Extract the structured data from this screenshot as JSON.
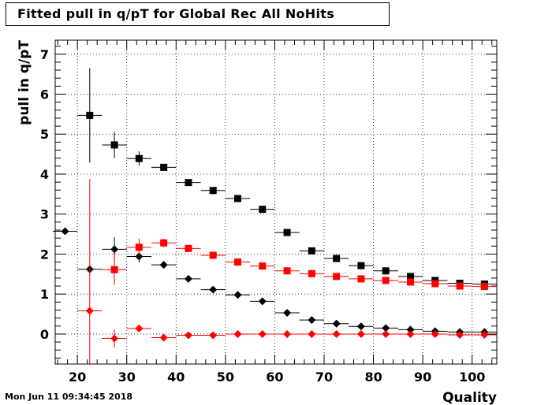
{
  "title": "Fitted pull in q/pT for Global Rec All NoHits",
  "timestamp": "Mon Jun 11 09:34:45 2018",
  "chart_data": {
    "type": "scatter",
    "title": "Fitted pull in q/pT for Global Rec All NoHits",
    "xlabel": "Quality",
    "ylabel": "pull in q/pT",
    "xlim": [
      15.5,
      105
    ],
    "ylim": [
      -0.75,
      7.35
    ],
    "xticks": [
      20,
      30,
      40,
      50,
      60,
      70,
      80,
      90,
      100
    ],
    "yticks": [
      0,
      1,
      2,
      3,
      4,
      5,
      6,
      7
    ],
    "grid": true,
    "legend": "none",
    "series": [
      {
        "marker": "square",
        "color": "#000000",
        "points": [
          {
            "x": 22.5,
            "y": 5.47,
            "yerr": 1.18
          },
          {
            "x": 27.5,
            "y": 4.73,
            "yerr": 0.33
          },
          {
            "x": 32.5,
            "y": 4.39,
            "yerr": 0.18
          },
          {
            "x": 37.5,
            "y": 4.17,
            "yerr": 0.08
          },
          {
            "x": 42.5,
            "y": 3.79,
            "yerr": 0.05
          },
          {
            "x": 47.5,
            "y": 3.59,
            "yerr": 0.04
          },
          {
            "x": 52.5,
            "y": 3.39,
            "yerr": 0.03
          },
          {
            "x": 57.5,
            "y": 3.12,
            "yerr": 0.03
          },
          {
            "x": 62.5,
            "y": 2.54,
            "yerr": 0.03
          },
          {
            "x": 67.5,
            "y": 2.08,
            "yerr": 0.02
          },
          {
            "x": 72.5,
            "y": 1.89,
            "yerr": 0.02
          },
          {
            "x": 77.5,
            "y": 1.71,
            "yerr": 0.02
          },
          {
            "x": 82.5,
            "y": 1.58,
            "yerr": 0.02
          },
          {
            "x": 87.5,
            "y": 1.44,
            "yerr": 0.02
          },
          {
            "x": 92.5,
            "y": 1.34,
            "yerr": 0.02
          },
          {
            "x": 97.5,
            "y": 1.27,
            "yerr": 0.02
          },
          {
            "x": 102.5,
            "y": 1.25,
            "yerr": 0.02
          }
        ]
      },
      {
        "marker": "diamond",
        "color": "#000000",
        "points": [
          {
            "x": 17.5,
            "y": 2.57,
            "yerr": 0.0
          },
          {
            "x": 22.5,
            "y": 1.62,
            "yerr": 0.0
          },
          {
            "x": 27.5,
            "y": 2.12,
            "yerr": 0.3
          },
          {
            "x": 32.5,
            "y": 1.94,
            "yerr": 0.15
          },
          {
            "x": 37.5,
            "y": 1.73,
            "yerr": 0.05
          },
          {
            "x": 42.5,
            "y": 1.38,
            "yerr": 0.04
          },
          {
            "x": 47.5,
            "y": 1.11,
            "yerr": 0.03
          },
          {
            "x": 52.5,
            "y": 0.98,
            "yerr": 0.03
          },
          {
            "x": 57.5,
            "y": 0.82,
            "yerr": 0.02
          },
          {
            "x": 62.5,
            "y": 0.53,
            "yerr": 0.02
          },
          {
            "x": 67.5,
            "y": 0.35,
            "yerr": 0.02
          },
          {
            "x": 72.5,
            "y": 0.26,
            "yerr": 0.02
          },
          {
            "x": 77.5,
            "y": 0.19,
            "yerr": 0.02
          },
          {
            "x": 82.5,
            "y": 0.15,
            "yerr": 0.02
          },
          {
            "x": 87.5,
            "y": 0.11,
            "yerr": 0.02
          },
          {
            "x": 92.5,
            "y": 0.07,
            "yerr": 0.02
          },
          {
            "x": 97.5,
            "y": 0.05,
            "yerr": 0.02
          },
          {
            "x": 102.5,
            "y": 0.05,
            "yerr": 0.02
          }
        ]
      },
      {
        "marker": "square",
        "color": "#ff0000",
        "points": [
          {
            "x": 27.5,
            "y": 1.61,
            "yerr": 0.38
          },
          {
            "x": 32.5,
            "y": 2.17,
            "yerr": 0.22
          },
          {
            "x": 37.5,
            "y": 2.28,
            "yerr": 0.1
          },
          {
            "x": 42.5,
            "y": 2.14,
            "yerr": 0.05
          },
          {
            "x": 47.5,
            "y": 1.97,
            "yerr": 0.04
          },
          {
            "x": 52.5,
            "y": 1.8,
            "yerr": 0.03
          },
          {
            "x": 57.5,
            "y": 1.7,
            "yerr": 0.03
          },
          {
            "x": 62.5,
            "y": 1.58,
            "yerr": 0.02
          },
          {
            "x": 67.5,
            "y": 1.51,
            "yerr": 0.02
          },
          {
            "x": 72.5,
            "y": 1.44,
            "yerr": 0.02
          },
          {
            "x": 77.5,
            "y": 1.38,
            "yerr": 0.02
          },
          {
            "x": 82.5,
            "y": 1.34,
            "yerr": 0.02
          },
          {
            "x": 87.5,
            "y": 1.3,
            "yerr": 0.02
          },
          {
            "x": 92.5,
            "y": 1.26,
            "yerr": 0.02
          },
          {
            "x": 97.5,
            "y": 1.2,
            "yerr": 0.02
          },
          {
            "x": 102.5,
            "y": 1.19,
            "yerr": 0.02
          }
        ]
      },
      {
        "marker": "diamond",
        "color": "#ff0000",
        "points": [
          {
            "x": 22.5,
            "y": 0.58,
            "yerr": 3.3
          },
          {
            "x": 27.5,
            "y": -0.11,
            "yerr": 0.22
          },
          {
            "x": 32.5,
            "y": 0.14,
            "yerr": 0.08
          },
          {
            "x": 37.5,
            "y": -0.09,
            "yerr": 0.04
          },
          {
            "x": 42.5,
            "y": -0.03,
            "yerr": 0.03
          },
          {
            "x": 47.5,
            "y": -0.03,
            "yerr": 0.02
          },
          {
            "x": 52.5,
            "y": 0.0,
            "yerr": 0.02
          },
          {
            "x": 57.5,
            "y": 0.0,
            "yerr": 0.02
          },
          {
            "x": 62.5,
            "y": 0.0,
            "yerr": 0.02
          },
          {
            "x": 67.5,
            "y": 0.0,
            "yerr": 0.02
          },
          {
            "x": 72.5,
            "y": 0.0,
            "yerr": 0.02
          },
          {
            "x": 77.5,
            "y": 0.0,
            "yerr": 0.02
          },
          {
            "x": 82.5,
            "y": 0.0,
            "yerr": 0.02
          },
          {
            "x": 87.5,
            "y": 0.0,
            "yerr": 0.02
          },
          {
            "x": 92.5,
            "y": 0.0,
            "yerr": 0.02
          },
          {
            "x": 97.5,
            "y": -0.02,
            "yerr": 0.02
          },
          {
            "x": 102.5,
            "y": -0.02,
            "yerr": 0.02
          }
        ]
      }
    ]
  }
}
